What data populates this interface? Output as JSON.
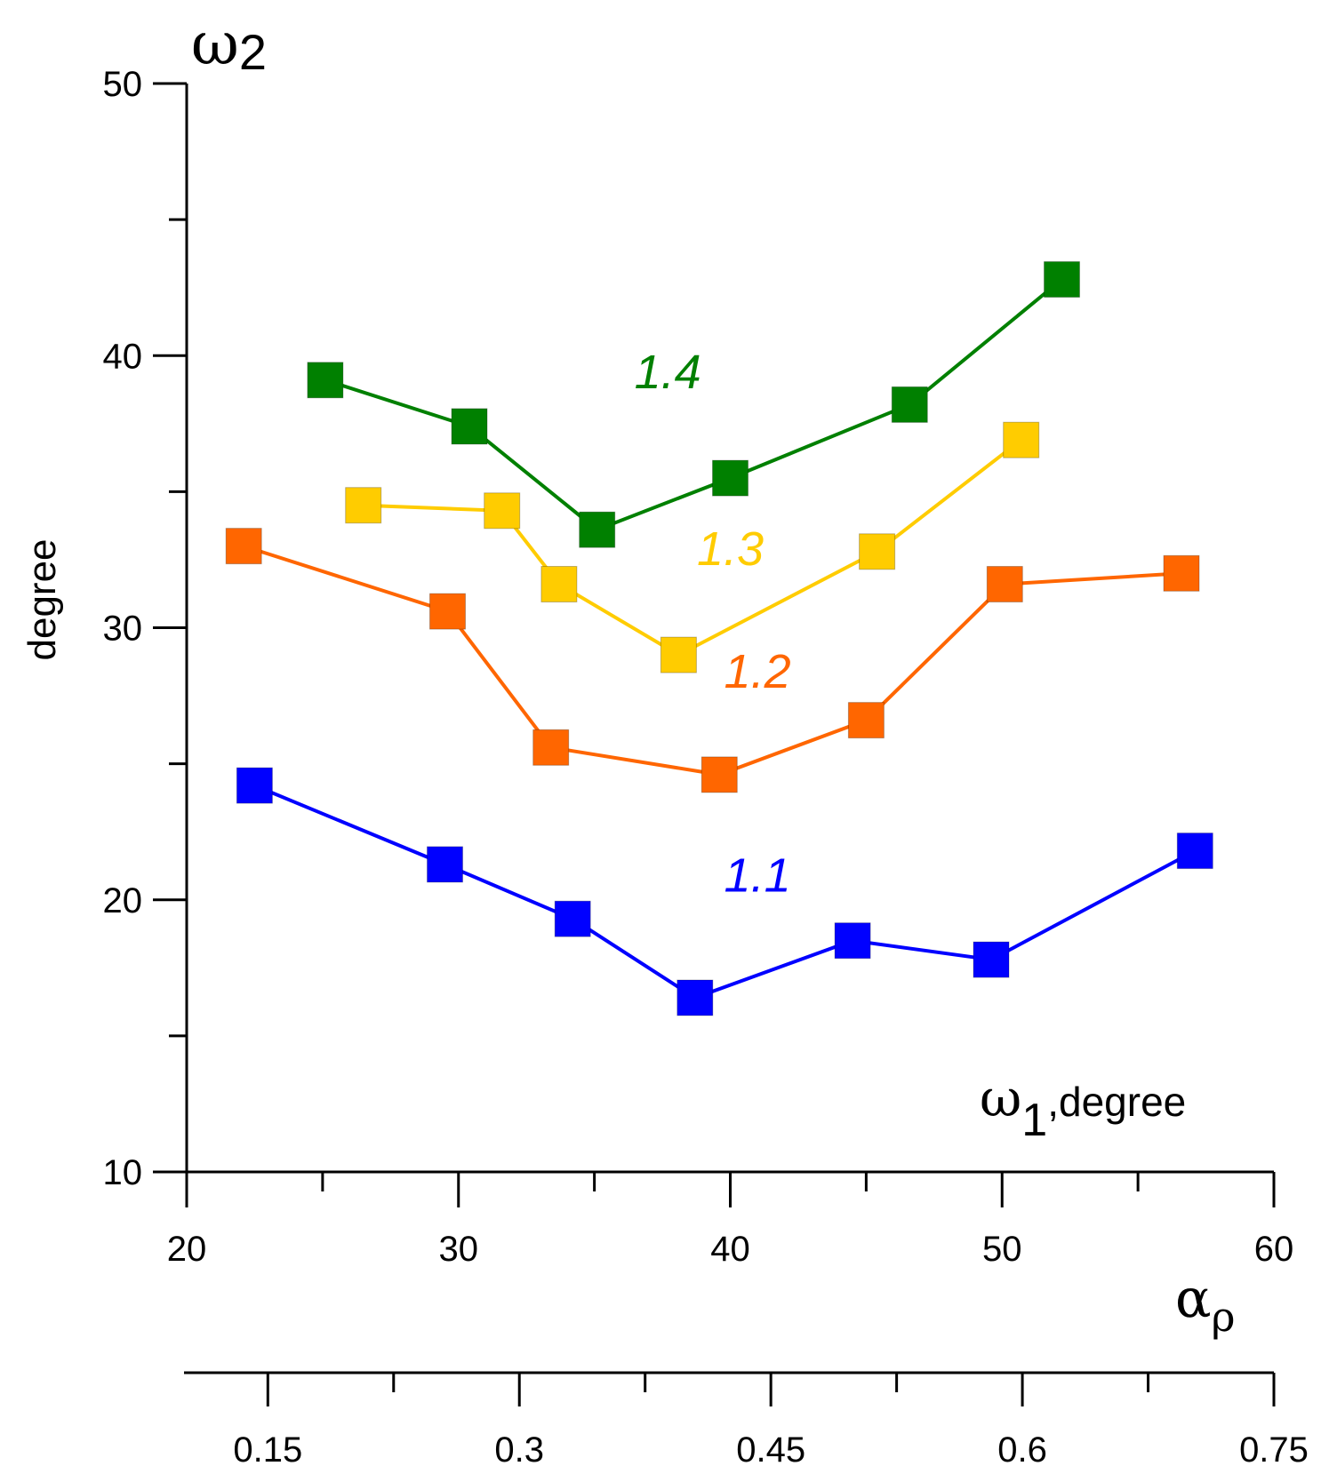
{
  "chart_data": {
    "type": "line",
    "title": "",
    "y_axis": {
      "symbol": "ω",
      "subscript": "2",
      "label": "degree",
      "range": [
        10,
        50
      ],
      "major_ticks": [
        10,
        20,
        30,
        40,
        50
      ],
      "minor_ticks": [
        15,
        25,
        35,
        45
      ]
    },
    "x_axis": {
      "symbol": "ω",
      "subscript": "1",
      "label_suffix": ",degree",
      "range": [
        20,
        60
      ],
      "major_ticks": [
        20,
        30,
        40,
        50,
        60
      ],
      "minor_ticks": [
        25,
        35,
        45,
        55
      ]
    },
    "x2_axis": {
      "symbol": "α",
      "subscript": "ρ",
      "range": [
        0.1,
        0.75
      ],
      "tick_labels": [
        "0.15",
        "0.3",
        "0.45",
        "0.6",
        "0.75"
      ],
      "major_ticks": [
        0.15,
        0.3,
        0.45,
        0.6,
        0.75
      ],
      "minor_ticks": [
        0.225,
        0.375,
        0.525,
        0.675
      ]
    },
    "series": [
      {
        "name": "1.1",
        "color": "#0000ff",
        "x": [
          22.5,
          29.5,
          34.2,
          38.7,
          44.5,
          49.6,
          57.1
        ],
        "y": [
          24.2,
          21.3,
          19.3,
          16.4,
          18.5,
          17.8,
          21.8
        ]
      },
      {
        "name": "1.2",
        "color": "#ff6600",
        "x": [
          22.1,
          29.6,
          33.4,
          39.6,
          45.0,
          50.1,
          56.6
        ],
        "y": [
          33.0,
          30.6,
          25.6,
          24.6,
          26.6,
          31.6,
          32.0
        ]
      },
      {
        "name": "1.3",
        "color": "#ffcc00",
        "x": [
          26.5,
          31.6,
          33.7,
          38.1,
          45.4,
          50.7
        ],
        "y": [
          34.5,
          34.3,
          31.6,
          29.0,
          32.8,
          36.9
        ]
      },
      {
        "name": "1.4",
        "color": "#008000",
        "x": [
          25.1,
          30.4,
          35.1,
          40.0,
          46.6,
          52.2
        ],
        "y": [
          39.1,
          37.4,
          33.6,
          35.5,
          38.2,
          42.8
        ]
      }
    ],
    "series_labels": [
      {
        "text": "1.1",
        "color": "#0000ff",
        "x": 41.0,
        "y": 20.3
      },
      {
        "text": "1.2",
        "color": "#ff6600",
        "x": 41.0,
        "y": 27.8
      },
      {
        "text": "1.3",
        "color": "#ffcc00",
        "x": 40.0,
        "y": 32.3
      },
      {
        "text": "1.4",
        "color": "#008000",
        "x": 37.7,
        "y": 38.8
      }
    ]
  }
}
